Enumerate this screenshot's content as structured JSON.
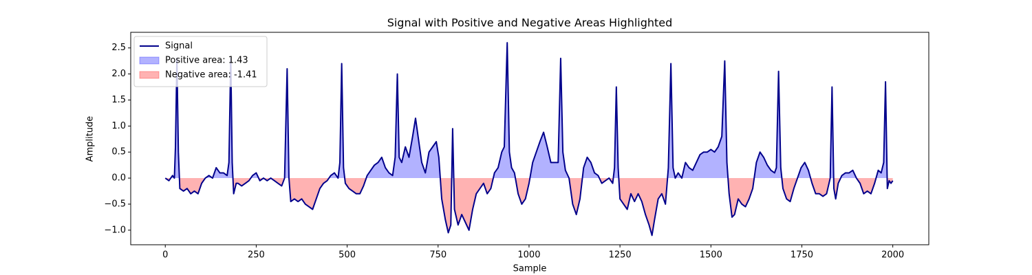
{
  "chart_data": {
    "type": "line",
    "title": "Signal with Positive and Negative Areas Highlighted",
    "xlabel": "Sample",
    "ylabel": "Amplitude",
    "xlim": [
      -95,
      2099
    ],
    "ylim": [
      -1.28,
      2.8
    ],
    "xticks": [
      0,
      250,
      500,
      750,
      1000,
      1250,
      1500,
      1750,
      2000
    ],
    "yticks": [
      {
        "value": -1.0,
        "label": "−1.0"
      },
      {
        "value": -0.5,
        "label": "−0.5"
      },
      {
        "value": 0.0,
        "label": "0.0"
      },
      {
        "value": 0.5,
        "label": "0.5"
      },
      {
        "value": 1.0,
        "label": "1.0"
      },
      {
        "value": 1.5,
        "label": "1.5"
      },
      {
        "value": 2.0,
        "label": "2.0"
      },
      {
        "value": 2.5,
        "label": "2.5"
      }
    ],
    "legend": "upper left",
    "x": [
      0,
      10,
      20,
      25,
      28,
      32,
      36,
      40,
      50,
      60,
      70,
      80,
      90,
      100,
      110,
      120,
      130,
      140,
      150,
      160,
      170,
      175,
      180,
      184,
      188,
      195,
      200,
      210,
      220,
      230,
      240,
      250,
      260,
      270,
      280,
      290,
      300,
      310,
      320,
      328,
      335,
      340,
      345,
      355,
      365,
      375,
      385,
      395,
      405,
      415,
      425,
      435,
      445,
      455,
      465,
      475,
      480,
      485,
      490,
      495,
      505,
      515,
      525,
      535,
      545,
      555,
      565,
      575,
      585,
      595,
      605,
      615,
      625,
      632,
      638,
      643,
      650,
      660,
      670,
      680,
      688,
      695,
      705,
      715,
      725,
      735,
      745,
      752,
      760,
      770,
      778,
      785,
      790,
      795,
      805,
      815,
      825,
      835,
      845,
      855,
      865,
      875,
      885,
      895,
      905,
      915,
      925,
      932,
      940,
      946,
      952,
      960,
      970,
      980,
      990,
      1000,
      1010,
      1020,
      1030,
      1040,
      1050,
      1060,
      1070,
      1080,
      1087,
      1093,
      1100,
      1110,
      1120,
      1130,
      1140,
      1150,
      1160,
      1170,
      1180,
      1190,
      1200,
      1210,
      1220,
      1230,
      1235,
      1240,
      1245,
      1250,
      1260,
      1270,
      1280,
      1290,
      1300,
      1310,
      1320,
      1330,
      1338,
      1345,
      1355,
      1365,
      1375,
      1383,
      1390,
      1396,
      1402,
      1410,
      1420,
      1430,
      1440,
      1450,
      1460,
      1470,
      1480,
      1490,
      1500,
      1510,
      1520,
      1530,
      1538,
      1544,
      1550,
      1558,
      1565,
      1575,
      1585,
      1595,
      1605,
      1615,
      1625,
      1635,
      1645,
      1655,
      1665,
      1675,
      1680,
      1686,
      1692,
      1698,
      1708,
      1718,
      1728,
      1738,
      1748,
      1758,
      1768,
      1778,
      1788,
      1798,
      1808,
      1818,
      1828,
      1833,
      1838,
      1843,
      1850,
      1860,
      1870,
      1880,
      1890,
      1900,
      1910,
      1920,
      1930,
      1940,
      1950,
      1960,
      1968,
      1975,
      1980,
      1985,
      1990,
      1995,
      2000
    ],
    "series": [
      {
        "name": "Signal",
        "color": "#00008b",
        "values": [
          0.0,
          -0.05,
          0.05,
          0.0,
          0.6,
          2.3,
          0.5,
          -0.2,
          -0.25,
          -0.2,
          -0.3,
          -0.25,
          -0.3,
          -0.1,
          0.0,
          0.05,
          0.0,
          0.2,
          0.1,
          0.1,
          0.05,
          0.3,
          2.3,
          0.3,
          -0.3,
          -0.1,
          -0.1,
          -0.15,
          -0.1,
          -0.05,
          0.05,
          0.1,
          -0.05,
          0.0,
          -0.05,
          0.0,
          -0.05,
          -0.1,
          -0.15,
          0.0,
          2.1,
          0.0,
          -0.45,
          -0.4,
          -0.45,
          -0.4,
          -0.5,
          -0.55,
          -0.6,
          -0.4,
          -0.2,
          -0.1,
          -0.05,
          0.05,
          0.1,
          0.0,
          0.3,
          2.2,
          0.2,
          -0.1,
          -0.2,
          -0.25,
          -0.3,
          -0.3,
          -0.15,
          0.05,
          0.15,
          0.25,
          0.3,
          0.4,
          0.2,
          0.1,
          0.05,
          0.4,
          2.0,
          0.4,
          0.3,
          0.6,
          0.4,
          0.8,
          1.15,
          0.8,
          0.3,
          0.1,
          0.5,
          0.6,
          0.7,
          0.4,
          -0.4,
          -0.8,
          -1.05,
          -0.9,
          0.95,
          -0.6,
          -0.9,
          -0.7,
          -0.85,
          -1.0,
          -0.6,
          -0.3,
          -0.2,
          -0.1,
          -0.3,
          -0.2,
          0.1,
          0.2,
          0.5,
          0.6,
          2.6,
          0.5,
          0.2,
          0.1,
          -0.3,
          -0.5,
          -0.4,
          -0.1,
          0.3,
          0.5,
          0.7,
          0.88,
          0.6,
          0.3,
          0.3,
          0.3,
          2.3,
          0.5,
          0.15,
          0.0,
          -0.5,
          -0.7,
          -0.4,
          0.2,
          0.4,
          0.3,
          0.1,
          0.05,
          -0.1,
          -0.05,
          0.0,
          -0.1,
          0.2,
          1.75,
          0.2,
          -0.4,
          -0.5,
          -0.6,
          -0.3,
          -0.45,
          -0.3,
          -0.45,
          -0.7,
          -0.9,
          -1.1,
          -0.8,
          -0.4,
          -0.3,
          -0.5,
          0.2,
          2.2,
          0.2,
          0.0,
          0.1,
          0.0,
          0.3,
          0.2,
          0.15,
          0.3,
          0.45,
          0.5,
          0.5,
          0.55,
          0.5,
          0.6,
          0.8,
          2.25,
          0.3,
          -0.3,
          -0.75,
          -0.7,
          -0.4,
          -0.5,
          -0.55,
          -0.4,
          -0.2,
          0.3,
          0.5,
          0.4,
          0.25,
          0.15,
          0.1,
          0.2,
          2.05,
          0.2,
          -0.2,
          -0.4,
          -0.45,
          -0.2,
          0.0,
          0.2,
          0.3,
          0.15,
          -0.1,
          -0.3,
          -0.3,
          -0.35,
          -0.3,
          0.0,
          1.75,
          -0.2,
          -0.4,
          -0.1,
          0.05,
          0.1,
          0.1,
          0.15,
          0.0,
          -0.1,
          -0.3,
          -0.25,
          -0.3,
          -0.1,
          0.15,
          0.1,
          0.3,
          1.85,
          -0.2,
          -0.05,
          -0.1,
          -0.05
        ]
      }
    ],
    "fills": [
      {
        "name": "Positive area: 1.43",
        "color": "blue",
        "alpha": 0.3,
        "side": "positive"
      },
      {
        "name": "Negative area: -1.41",
        "color": "red",
        "alpha": 0.3,
        "side": "negative"
      }
    ]
  }
}
